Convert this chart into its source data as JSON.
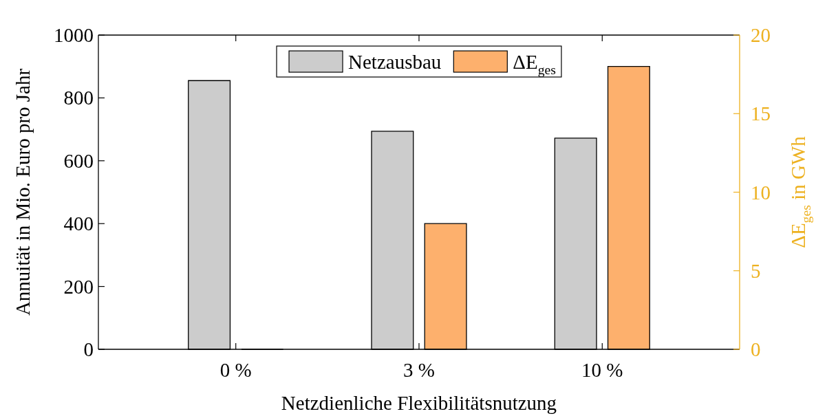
{
  "chart_data": {
    "type": "bar",
    "xlabel": "Netzdienliche Flexibilitätsnutzung",
    "ylabel": "Annuität in Mio. Euro pro Jahr",
    "y2label": "ΔE$_{ges}$ in GWh",
    "categories": [
      "0 %",
      "3 %",
      "10 %"
    ],
    "series": [
      {
        "name": "Netzausbau",
        "color": "#cccccc",
        "values": [
          855,
          694,
          672
        ]
      },
      {
        "name": "ΔE$_{ges}$",
        "color": "#fdb06d",
        "values": [
          0,
          8,
          18
        ],
        "axis": "y2"
      }
    ],
    "ylim": [
      0,
      1000
    ],
    "yticks": [
      0,
      200,
      400,
      600,
      800,
      1000
    ],
    "y2lim": [
      0,
      20
    ],
    "y2ticks": [
      0,
      5,
      10,
      15,
      20
    ],
    "legend": "top"
  }
}
